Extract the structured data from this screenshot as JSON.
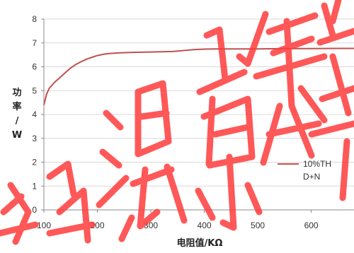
{
  "chart_data": {
    "type": "line",
    "xlabel": "电阻值/KΩ",
    "ylabel": "功率/W",
    "ylabel_lines": [
      "功",
      "率",
      "/",
      "W"
    ],
    "xlim": [
      100,
      680
    ],
    "ylim": [
      0,
      8
    ],
    "x_ticks": [
      100,
      200,
      300,
      400,
      500,
      600
    ],
    "y_ticks": [
      0,
      1,
      2,
      3,
      4,
      5,
      6,
      7,
      8
    ],
    "grid": "horizontal",
    "legend_placement": "right",
    "series": [
      {
        "name": "10%THD+N",
        "name_lines": [
          "10%TH",
          "D+N"
        ],
        "color": "#c0504d",
        "x": [
          100,
          105,
          110,
          120,
          130,
          140,
          150,
          160,
          170,
          180,
          190,
          200,
          210,
          220,
          240,
          260,
          280,
          300,
          320,
          340,
          360,
          380,
          400,
          420,
          450,
          500,
          550,
          600,
          650,
          680
        ],
        "y": [
          4.4,
          4.85,
          5.1,
          5.35,
          5.55,
          5.75,
          5.95,
          6.1,
          6.22,
          6.32,
          6.4,
          6.47,
          6.52,
          6.55,
          6.58,
          6.6,
          6.61,
          6.62,
          6.63,
          6.64,
          6.68,
          6.72,
          6.74,
          6.75,
          6.75,
          6.75,
          6.76,
          6.76,
          6.77,
          6.77
        ]
      }
    ]
  },
  "watermark": {
    "color": "#ff3b3b",
    "text": "电子发烧友源库"
  }
}
